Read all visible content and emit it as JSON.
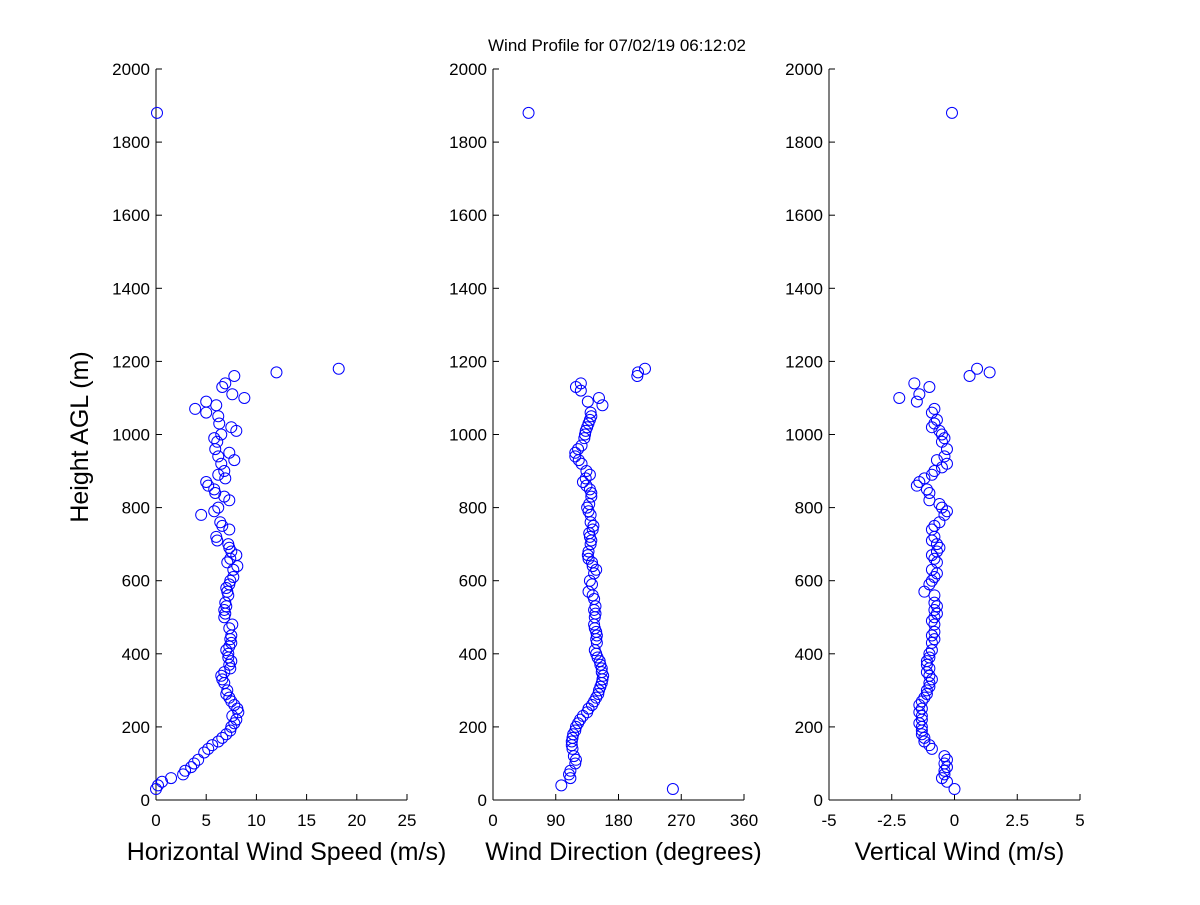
{
  "figure": {
    "title": "Wind Profile for  07/02/19 06:12:02",
    "ylabel": "Height AGL (m)"
  },
  "chart_data": [
    {
      "type": "scatter",
      "xlabel": "Horizontal Wind Speed (m/s)",
      "ylabel": "Height AGL (m)",
      "xlim": [
        0,
        25
      ],
      "ylim": [
        0,
        2000
      ],
      "xticks": [
        0,
        5,
        10,
        15,
        20,
        25
      ],
      "xtick_labels": [
        "0",
        "5",
        "10",
        "15",
        "20",
        "25"
      ],
      "yticks": [
        0,
        200,
        400,
        600,
        800,
        1000,
        1200,
        1400,
        1600,
        1800,
        2000
      ],
      "ytick_labels": [
        "0",
        "200",
        "400",
        "600",
        "800",
        "1000",
        "1200",
        "1400",
        "1600",
        "1800",
        "2000"
      ],
      "grid": false,
      "marker": "open-circle",
      "color": "#0000ff",
      "points": [
        [
          0.1,
          1880
        ],
        [
          18.2,
          1180
        ],
        [
          12.0,
          1170
        ],
        [
          7.8,
          1160
        ],
        [
          6.9,
          1140
        ],
        [
          6.6,
          1130
        ],
        [
          7.6,
          1110
        ],
        [
          8.8,
          1100
        ],
        [
          5.0,
          1090
        ],
        [
          6.0,
          1080
        ],
        [
          3.9,
          1070
        ],
        [
          5.0,
          1060
        ],
        [
          6.2,
          1050
        ],
        [
          6.3,
          1030
        ],
        [
          7.5,
          1020
        ],
        [
          8.0,
          1010
        ],
        [
          6.5,
          1000
        ],
        [
          5.8,
          990
        ],
        [
          6.1,
          980
        ],
        [
          5.9,
          960
        ],
        [
          7.3,
          950
        ],
        [
          6.2,
          940
        ],
        [
          7.8,
          930
        ],
        [
          6.5,
          920
        ],
        [
          6.8,
          900
        ],
        [
          6.2,
          890
        ],
        [
          6.9,
          880
        ],
        [
          5.0,
          870
        ],
        [
          5.2,
          860
        ],
        [
          5.8,
          850
        ],
        [
          5.9,
          840
        ],
        [
          6.8,
          830
        ],
        [
          7.3,
          820
        ],
        [
          6.2,
          800
        ],
        [
          5.8,
          790
        ],
        [
          4.5,
          780
        ],
        [
          6.4,
          760
        ],
        [
          6.6,
          750
        ],
        [
          7.3,
          740
        ],
        [
          6.0,
          720
        ],
        [
          6.1,
          710
        ],
        [
          7.2,
          700
        ],
        [
          7.3,
          690
        ],
        [
          7.5,
          680
        ],
        [
          8.0,
          670
        ],
        [
          7.4,
          660
        ],
        [
          7.1,
          650
        ],
        [
          8.1,
          640
        ],
        [
          7.7,
          630
        ],
        [
          7.7,
          610
        ],
        [
          7.4,
          600
        ],
        [
          7.3,
          590
        ],
        [
          7.0,
          580
        ],
        [
          7.1,
          570
        ],
        [
          7.2,
          560
        ],
        [
          6.9,
          540
        ],
        [
          7.0,
          530
        ],
        [
          6.8,
          520
        ],
        [
          6.9,
          510
        ],
        [
          6.8,
          500
        ],
        [
          7.6,
          480
        ],
        [
          7.3,
          470
        ],
        [
          7.5,
          450
        ],
        [
          7.4,
          440
        ],
        [
          7.5,
          430
        ],
        [
          7.3,
          420
        ],
        [
          7.0,
          410
        ],
        [
          7.2,
          400
        ],
        [
          7.2,
          390
        ],
        [
          7.5,
          380
        ],
        [
          7.3,
          370
        ],
        [
          7.4,
          360
        ],
        [
          6.8,
          350
        ],
        [
          6.5,
          340
        ],
        [
          6.6,
          330
        ],
        [
          6.8,
          320
        ],
        [
          7.1,
          300
        ],
        [
          7.0,
          290
        ],
        [
          7.3,
          280
        ],
        [
          7.5,
          270
        ],
        [
          7.8,
          260
        ],
        [
          8.1,
          250
        ],
        [
          8.2,
          240
        ],
        [
          7.6,
          230
        ],
        [
          8.0,
          220
        ],
        [
          7.8,
          210
        ],
        [
          7.5,
          200
        ],
        [
          7.4,
          190
        ],
        [
          7.0,
          180
        ],
        [
          6.6,
          170
        ],
        [
          6.2,
          160
        ],
        [
          5.6,
          150
        ],
        [
          5.2,
          140
        ],
        [
          4.8,
          130
        ],
        [
          4.2,
          110
        ],
        [
          3.8,
          100
        ],
        [
          3.5,
          90
        ],
        [
          2.9,
          80
        ],
        [
          2.7,
          70
        ],
        [
          1.5,
          60
        ],
        [
          0.6,
          50
        ],
        [
          0.2,
          40
        ],
        [
          0.0,
          30
        ]
      ]
    },
    {
      "type": "scatter",
      "xlabel": "Wind Direction (degrees)",
      "ylabel": "",
      "xlim": [
        0,
        360
      ],
      "ylim": [
        0,
        2000
      ],
      "xticks": [
        0,
        90,
        180,
        270,
        360
      ],
      "xtick_labels": [
        "0",
        "90",
        "180",
        "270",
        "360"
      ],
      "yticks": [
        0,
        200,
        400,
        600,
        800,
        1000,
        1200,
        1400,
        1600,
        1800,
        2000
      ],
      "ytick_labels": [
        "0",
        "200",
        "400",
        "600",
        "800",
        "1000",
        "1200",
        "1400",
        "1600",
        "1800",
        "2000"
      ],
      "grid": false,
      "marker": "open-circle",
      "color": "#0000ff",
      "points": [
        [
          51,
          1880
        ],
        [
          218,
          1180
        ],
        [
          208,
          1170
        ],
        [
          207,
          1160
        ],
        [
          126,
          1140
        ],
        [
          119,
          1130
        ],
        [
          126,
          1120
        ],
        [
          152,
          1100
        ],
        [
          136,
          1090
        ],
        [
          157,
          1080
        ],
        [
          140,
          1060
        ],
        [
          141,
          1050
        ],
        [
          139,
          1040
        ],
        [
          137,
          1030
        ],
        [
          135,
          1020
        ],
        [
          133,
          1010
        ],
        [
          132,
          1000
        ],
        [
          131,
          990
        ],
        [
          127,
          970
        ],
        [
          122,
          960
        ],
        [
          118,
          950
        ],
        [
          118,
          940
        ],
        [
          123,
          930
        ],
        [
          127,
          920
        ],
        [
          134,
          900
        ],
        [
          139,
          890
        ],
        [
          133,
          880
        ],
        [
          129,
          870
        ],
        [
          134,
          860
        ],
        [
          139,
          850
        ],
        [
          141,
          840
        ],
        [
          141,
          830
        ],
        [
          138,
          810
        ],
        [
          135,
          800
        ],
        [
          137,
          790
        ],
        [
          140,
          780
        ],
        [
          140,
          760
        ],
        [
          144,
          750
        ],
        [
          143,
          740
        ],
        [
          138,
          730
        ],
        [
          139,
          720
        ],
        [
          141,
          710
        ],
        [
          140,
          700
        ],
        [
          137,
          680
        ],
        [
          136,
          670
        ],
        [
          137,
          660
        ],
        [
          142,
          650
        ],
        [
          143,
          640
        ],
        [
          148,
          630
        ],
        [
          145,
          620
        ],
        [
          139,
          600
        ],
        [
          142,
          590
        ],
        [
          137,
          570
        ],
        [
          143,
          560
        ],
        [
          145,
          550
        ],
        [
          147,
          530
        ],
        [
          145,
          520
        ],
        [
          147,
          510
        ],
        [
          146,
          500
        ],
        [
          145,
          480
        ],
        [
          146,
          470
        ],
        [
          148,
          460
        ],
        [
          149,
          450
        ],
        [
          148,
          440
        ],
        [
          149,
          430
        ],
        [
          146,
          410
        ],
        [
          148,
          400
        ],
        [
          150,
          390
        ],
        [
          153,
          380
        ],
        [
          154,
          370
        ],
        [
          156,
          360
        ],
        [
          156,
          350
        ],
        [
          158,
          340
        ],
        [
          157,
          330
        ],
        [
          156,
          320
        ],
        [
          154,
          310
        ],
        [
          152,
          300
        ],
        [
          151,
          290
        ],
        [
          148,
          280
        ],
        [
          145,
          270
        ],
        [
          142,
          260
        ],
        [
          137,
          250
        ],
        [
          135,
          240
        ],
        [
          129,
          230
        ],
        [
          125,
          220
        ],
        [
          122,
          210
        ],
        [
          119,
          200
        ],
        [
          118,
          190
        ],
        [
          115,
          180
        ],
        [
          114,
          170
        ],
        [
          113,
          160
        ],
        [
          113,
          150
        ],
        [
          114,
          140
        ],
        [
          116,
          120
        ],
        [
          119,
          110
        ],
        [
          118,
          100
        ],
        [
          111,
          80
        ],
        [
          109,
          70
        ],
        [
          111,
          60
        ],
        [
          98,
          40
        ],
        [
          258,
          30
        ]
      ]
    },
    {
      "type": "scatter",
      "xlabel": "Vertical Wind (m/s)",
      "ylabel": "",
      "xlim": [
        -5,
        5
      ],
      "ylim": [
        0,
        2000
      ],
      "xticks": [
        -5,
        -2.5,
        0,
        2.5,
        5
      ],
      "xtick_labels": [
        "-5",
        "-2.5",
        "0",
        "2.5",
        "5"
      ],
      "yticks": [
        0,
        200,
        400,
        600,
        800,
        1000,
        1200,
        1400,
        1600,
        1800,
        2000
      ],
      "ytick_labels": [
        "0",
        "200",
        "400",
        "600",
        "800",
        "1000",
        "1200",
        "1400",
        "1600",
        "1800",
        "2000"
      ],
      "grid": false,
      "marker": "open-circle",
      "color": "#0000ff",
      "points": [
        [
          -0.1,
          1880
        ],
        [
          0.9,
          1180
        ],
        [
          1.4,
          1170
        ],
        [
          0.6,
          1160
        ],
        [
          -1.6,
          1140
        ],
        [
          -1.0,
          1130
        ],
        [
          -1.4,
          1110
        ],
        [
          -2.2,
          1100
        ],
        [
          -1.5,
          1090
        ],
        [
          -0.8,
          1070
        ],
        [
          -0.9,
          1060
        ],
        [
          -0.7,
          1040
        ],
        [
          -0.8,
          1030
        ],
        [
          -0.9,
          1020
        ],
        [
          -0.6,
          1010
        ],
        [
          -0.5,
          1000
        ],
        [
          -0.4,
          990
        ],
        [
          -0.5,
          980
        ],
        [
          -0.3,
          960
        ],
        [
          -0.4,
          940
        ],
        [
          -0.7,
          930
        ],
        [
          -0.3,
          920
        ],
        [
          -0.5,
          910
        ],
        [
          -0.8,
          900
        ],
        [
          -0.9,
          890
        ],
        [
          -1.2,
          880
        ],
        [
          -1.4,
          870
        ],
        [
          -1.5,
          860
        ],
        [
          -1.1,
          850
        ],
        [
          -1.0,
          840
        ],
        [
          -1.0,
          820
        ],
        [
          -0.6,
          810
        ],
        [
          -0.5,
          800
        ],
        [
          -0.3,
          790
        ],
        [
          -0.4,
          780
        ],
        [
          -0.6,
          760
        ],
        [
          -0.8,
          750
        ],
        [
          -0.9,
          740
        ],
        [
          -0.8,
          720
        ],
        [
          -0.9,
          710
        ],
        [
          -0.7,
          700
        ],
        [
          -0.6,
          690
        ],
        [
          -0.7,
          680
        ],
        [
          -0.9,
          670
        ],
        [
          -0.8,
          660
        ],
        [
          -0.7,
          650
        ],
        [
          -0.9,
          630
        ],
        [
          -0.7,
          620
        ],
        [
          -0.8,
          610
        ],
        [
          -0.9,
          600
        ],
        [
          -1.0,
          590
        ],
        [
          -1.2,
          570
        ],
        [
          -0.8,
          560
        ],
        [
          -0.8,
          540
        ],
        [
          -0.7,
          530
        ],
        [
          -0.8,
          520
        ],
        [
          -0.7,
          510
        ],
        [
          -0.8,
          500
        ],
        [
          -0.9,
          490
        ],
        [
          -0.8,
          480
        ],
        [
          -0.8,
          460
        ],
        [
          -0.9,
          450
        ],
        [
          -0.8,
          440
        ],
        [
          -0.9,
          430
        ],
        [
          -0.9,
          410
        ],
        [
          -1.0,
          400
        ],
        [
          -1.0,
          390
        ],
        [
          -1.1,
          380
        ],
        [
          -1.1,
          370
        ],
        [
          -1.0,
          360
        ],
        [
          -1.1,
          350
        ],
        [
          -1.0,
          340
        ],
        [
          -0.9,
          330
        ],
        [
          -1.0,
          320
        ],
        [
          -1.0,
          310
        ],
        [
          -1.1,
          300
        ],
        [
          -1.1,
          290
        ],
        [
          -1.2,
          280
        ],
        [
          -1.3,
          270
        ],
        [
          -1.4,
          260
        ],
        [
          -1.3,
          250
        ],
        [
          -1.4,
          240
        ],
        [
          -1.3,
          230
        ],
        [
          -1.3,
          220
        ],
        [
          -1.4,
          210
        ],
        [
          -1.3,
          200
        ],
        [
          -1.3,
          190
        ],
        [
          -1.3,
          180
        ],
        [
          -1.2,
          170
        ],
        [
          -1.2,
          160
        ],
        [
          -1.0,
          150
        ],
        [
          -0.9,
          140
        ],
        [
          -0.4,
          120
        ],
        [
          -0.3,
          110
        ],
        [
          -0.4,
          100
        ],
        [
          -0.3,
          90
        ],
        [
          -0.4,
          80
        ],
        [
          -0.4,
          70
        ],
        [
          -0.5,
          60
        ],
        [
          -0.3,
          50
        ],
        [
          0.0,
          30
        ]
      ]
    }
  ]
}
